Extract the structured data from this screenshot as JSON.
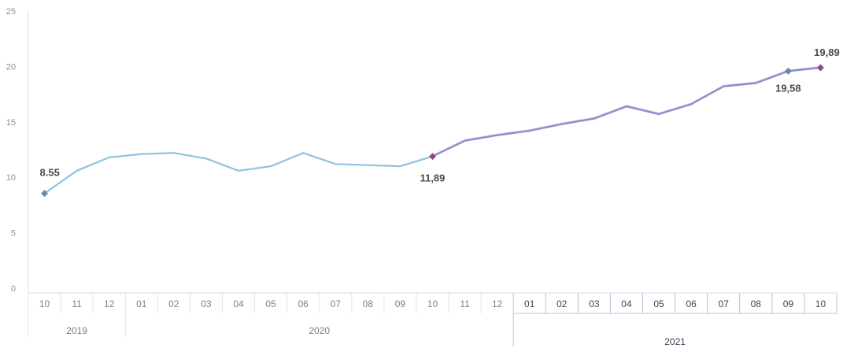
{
  "chart_data": {
    "type": "line",
    "title": "",
    "xlabel": "",
    "ylabel": "",
    "ylim": [
      0,
      25
    ],
    "yticks": [
      "0",
      "5",
      "10",
      "15",
      "20",
      "25"
    ],
    "x": [
      "10",
      "11",
      "12",
      "01",
      "02",
      "03",
      "04",
      "05",
      "06",
      "07",
      "08",
      "09",
      "10",
      "11",
      "12",
      "01",
      "02",
      "03",
      "04",
      "05",
      "06",
      "07",
      "08",
      "09",
      "10"
    ],
    "years": [
      {
        "label": "2019",
        "start": 0,
        "end": 2
      },
      {
        "label": "2020",
        "start": 3,
        "end": 14
      },
      {
        "label": "2021",
        "start": 15,
        "end": 24
      }
    ],
    "series": [
      {
        "values": [
          8.55,
          10.6,
          11.8,
          12.1,
          12.2,
          11.7,
          10.6,
          11.0,
          12.2,
          11.2,
          11.1,
          11.0,
          11.89,
          13.3,
          13.8,
          14.2,
          14.8,
          15.3,
          16.4,
          15.7,
          16.6,
          18.2,
          18.5,
          19.58,
          19.89
        ],
        "color_2019_2020": "#8fc3df",
        "color_2021": "#9a86c8"
      }
    ],
    "data_labels": [
      {
        "index": 0,
        "text": "8.55"
      },
      {
        "index": 12,
        "text": "11,89"
      },
      {
        "index": 23,
        "text": "19,58"
      },
      {
        "index": 24,
        "text": "19,89"
      }
    ],
    "grid": false
  }
}
